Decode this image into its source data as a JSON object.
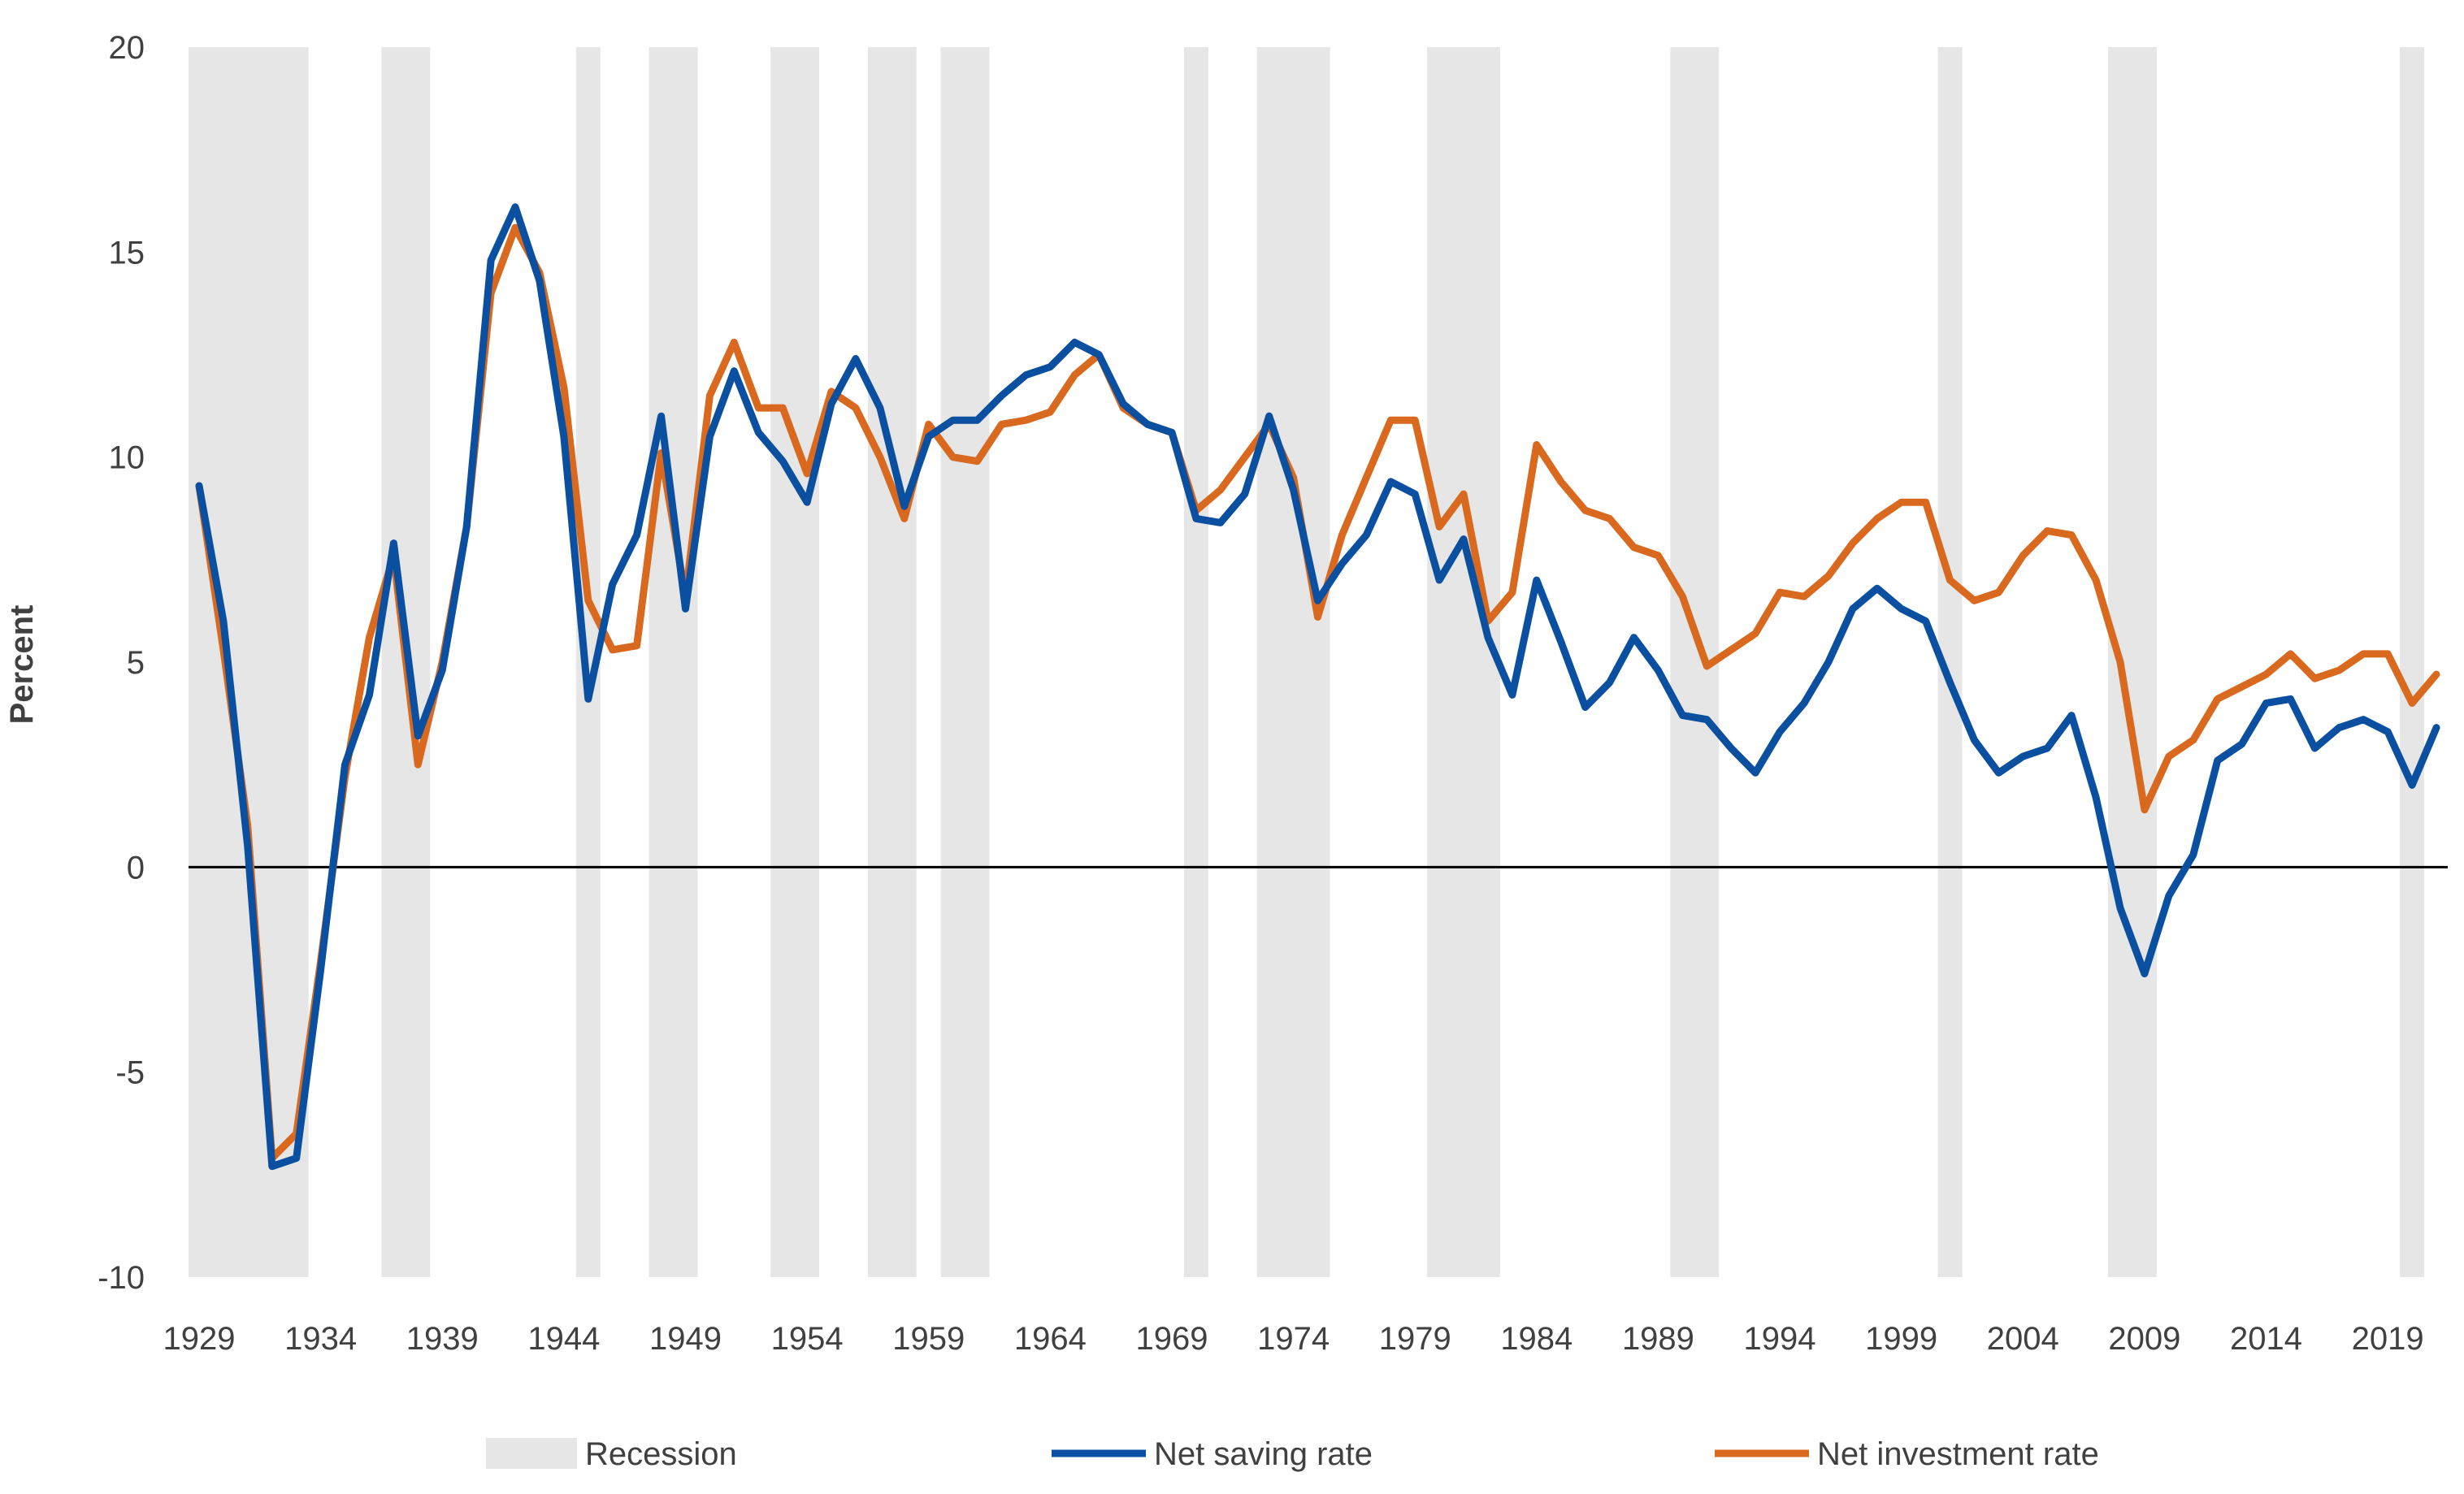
{
  "chart_data": {
    "type": "line",
    "ylabel": "Percent",
    "ylim": [
      -10,
      20
    ],
    "yticks": [
      -10,
      -5,
      0,
      5,
      10,
      15,
      20
    ],
    "xlim": [
      1929,
      2021
    ],
    "xticks": [
      1929,
      1934,
      1939,
      1944,
      1949,
      1954,
      1959,
      1964,
      1969,
      1974,
      1979,
      1984,
      1989,
      1994,
      1999,
      2004,
      2009,
      2014,
      2019
    ],
    "zero_line": true,
    "grid": false,
    "legend": "bottom",
    "recessions": [
      [
        1929,
        1933
      ],
      [
        1937,
        1938
      ],
      [
        1945,
        1945
      ],
      [
        1948,
        1949
      ],
      [
        1953,
        1954
      ],
      [
        1957,
        1958
      ],
      [
        1960,
        1961
      ],
      [
        1970,
        1970
      ],
      [
        1973,
        1975
      ],
      [
        1980,
        1982
      ],
      [
        1990,
        1991
      ],
      [
        2001,
        2001
      ],
      [
        2008,
        2009
      ],
      [
        2020,
        2020
      ]
    ],
    "legend_entries": {
      "recession": "Recession",
      "saving": "Net saving rate",
      "investment": "Net investment rate"
    },
    "colors": {
      "recession": "#e6e6e6",
      "saving": "#0b4fa0",
      "investment": "#d9691f",
      "zero_line": "#000000",
      "text": "#404040"
    },
    "x": [
      1929,
      1930,
      1931,
      1932,
      1933,
      1934,
      1935,
      1936,
      1937,
      1938,
      1939,
      1940,
      1941,
      1942,
      1943,
      1944,
      1945,
      1946,
      1947,
      1948,
      1949,
      1950,
      1951,
      1952,
      1953,
      1954,
      1955,
      1956,
      1957,
      1958,
      1959,
      1960,
      1961,
      1962,
      1963,
      1964,
      1965,
      1966,
      1967,
      1968,
      1969,
      1970,
      1971,
      1972,
      1973,
      1974,
      1975,
      1976,
      1977,
      1978,
      1979,
      1980,
      1981,
      1982,
      1983,
      1984,
      1985,
      1986,
      1987,
      1988,
      1989,
      1990,
      1991,
      1992,
      1993,
      1994,
      1995,
      1996,
      1997,
      1998,
      1999,
      2000,
      2001,
      2002,
      2003,
      2004,
      2005,
      2006,
      2007,
      2008,
      2009,
      2010,
      2011,
      2012,
      2013,
      2014,
      2015,
      2016,
      2017,
      2018,
      2019,
      2020,
      2021
    ],
    "series": [
      {
        "name": "Net saving rate",
        "values": [
          9.3,
          6.0,
          0.5,
          -7.3,
          -7.1,
          -2.5,
          2.5,
          4.2,
          7.9,
          3.2,
          4.8,
          8.3,
          14.8,
          16.1,
          14.3,
          10.5,
          4.1,
          6.9,
          8.1,
          11.0,
          6.3,
          10.5,
          12.1,
          10.6,
          9.9,
          8.9,
          11.3,
          12.4,
          11.2,
          8.8,
          10.5,
          10.9,
          10.9,
          11.5,
          12.0,
          12.2,
          12.8,
          12.5,
          11.3,
          10.8,
          10.6,
          8.5,
          8.4,
          9.1,
          11.0,
          9.2,
          6.5,
          7.4,
          8.1,
          9.4,
          9.1,
          7.0,
          8.0,
          5.6,
          4.2,
          7.0,
          5.5,
          3.9,
          4.5,
          5.6,
          4.8,
          3.7,
          3.6,
          2.9,
          2.3,
          3.3,
          4.0,
          5.0,
          6.3,
          6.8,
          6.3,
          6.0,
          4.5,
          3.1,
          2.3,
          2.7,
          2.9,
          3.7,
          1.7,
          -1.0,
          -2.6,
          -0.7,
          0.3,
          2.6,
          3.0,
          4.0,
          4.1,
          2.9,
          3.4,
          3.6,
          3.3,
          2.0,
          3.4
        ]
      },
      {
        "name": "Net investment rate",
        "values": [
          9.3,
          5.3,
          1.0,
          -7.1,
          -6.5,
          -2.3,
          2.2,
          5.6,
          7.6,
          2.5,
          5.0,
          8.3,
          14.0,
          15.6,
          14.5,
          11.7,
          6.5,
          5.3,
          5.4,
          10.1,
          6.6,
          11.5,
          12.8,
          11.2,
          11.2,
          9.6,
          11.6,
          11.2,
          10.0,
          8.5,
          10.8,
          10.0,
          9.9,
          10.8,
          10.9,
          11.1,
          12.0,
          12.5,
          11.2,
          10.8,
          10.6,
          8.7,
          9.2,
          10.0,
          10.8,
          9.5,
          6.1,
          8.1,
          9.5,
          10.9,
          10.9,
          8.3,
          9.1,
          6.0,
          6.7,
          10.3,
          9.4,
          8.7,
          8.5,
          7.8,
          7.6,
          6.6,
          4.9,
          5.3,
          5.7,
          6.7,
          6.6,
          7.1,
          7.9,
          8.5,
          8.9,
          8.9,
          7.0,
          6.5,
          6.7,
          7.6,
          8.2,
          8.1,
          7.0,
          5.0,
          1.4,
          2.7,
          3.1,
          4.1,
          4.4,
          4.7,
          5.2,
          4.6,
          4.8,
          5.2,
          5.2,
          4.0,
          4.7
        ]
      }
    ]
  }
}
